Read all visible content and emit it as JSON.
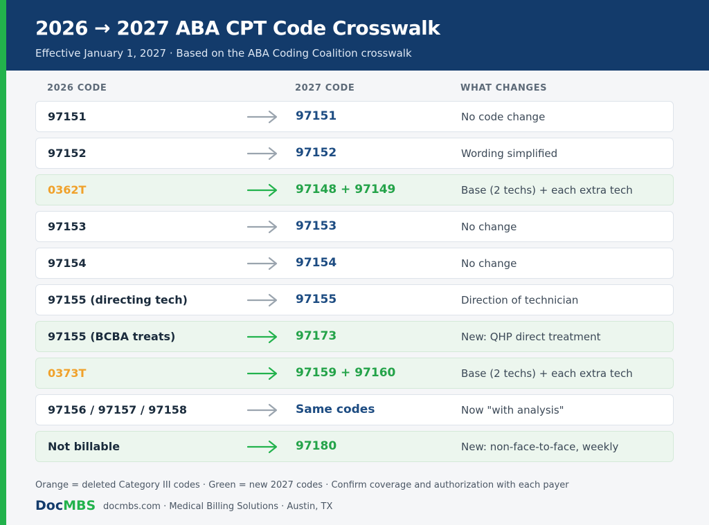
{
  "header": {
    "title": "2026 → 2027 ABA CPT Code Crosswalk",
    "subtitle": "Effective January 1, 2027 · Based on the ABA Coding Coalition crosswalk"
  },
  "columns": {
    "old": "2026 CODE",
    "new": "2027 CODE",
    "what": "WHAT CHANGES"
  },
  "rows": [
    {
      "old": "97151",
      "new": "97151",
      "what": "No code change",
      "type": "same"
    },
    {
      "old": "97152",
      "new": "97152",
      "what": "Wording simplified",
      "type": "same"
    },
    {
      "old": "0362T",
      "new": "97148 + 97149",
      "what": "Base (2 techs) + each extra tech",
      "type": "deleted"
    },
    {
      "old": "97153",
      "new": "97153",
      "what": "No change",
      "type": "same"
    },
    {
      "old": "97154",
      "new": "97154",
      "what": "No change",
      "type": "same"
    },
    {
      "old": "97155 (directing tech)",
      "new": "97155",
      "what": "Direction of technician",
      "type": "same"
    },
    {
      "old": "97155 (BCBA treats)",
      "new": "97173",
      "what": "New: QHP direct treatment",
      "type": "new"
    },
    {
      "old": "0373T",
      "new": "97159 + 97160",
      "what": "Base (2 techs) + each extra tech",
      "type": "deleted"
    },
    {
      "old": "97156 / 97157 / 97158",
      "new": "Same codes",
      "what": "Now \"with analysis\"",
      "type": "same"
    },
    {
      "old": "Not billable",
      "new": "97180",
      "what": "New: non-face-to-face, weekly",
      "type": "new"
    }
  ],
  "legend": "Orange = deleted Category III codes · Green = new 2027 codes · Confirm coverage and authorization with each payer",
  "footer": {
    "brand_a": "Doc",
    "brand_b": "MBS",
    "text": "docmbs.com · Medical Billing Solutions · Austin, TX"
  },
  "colors": {
    "navy": "#133b6b",
    "green": "#22b24c",
    "orange": "#f0a12b",
    "gray_arrow": "#9aa4ae"
  }
}
